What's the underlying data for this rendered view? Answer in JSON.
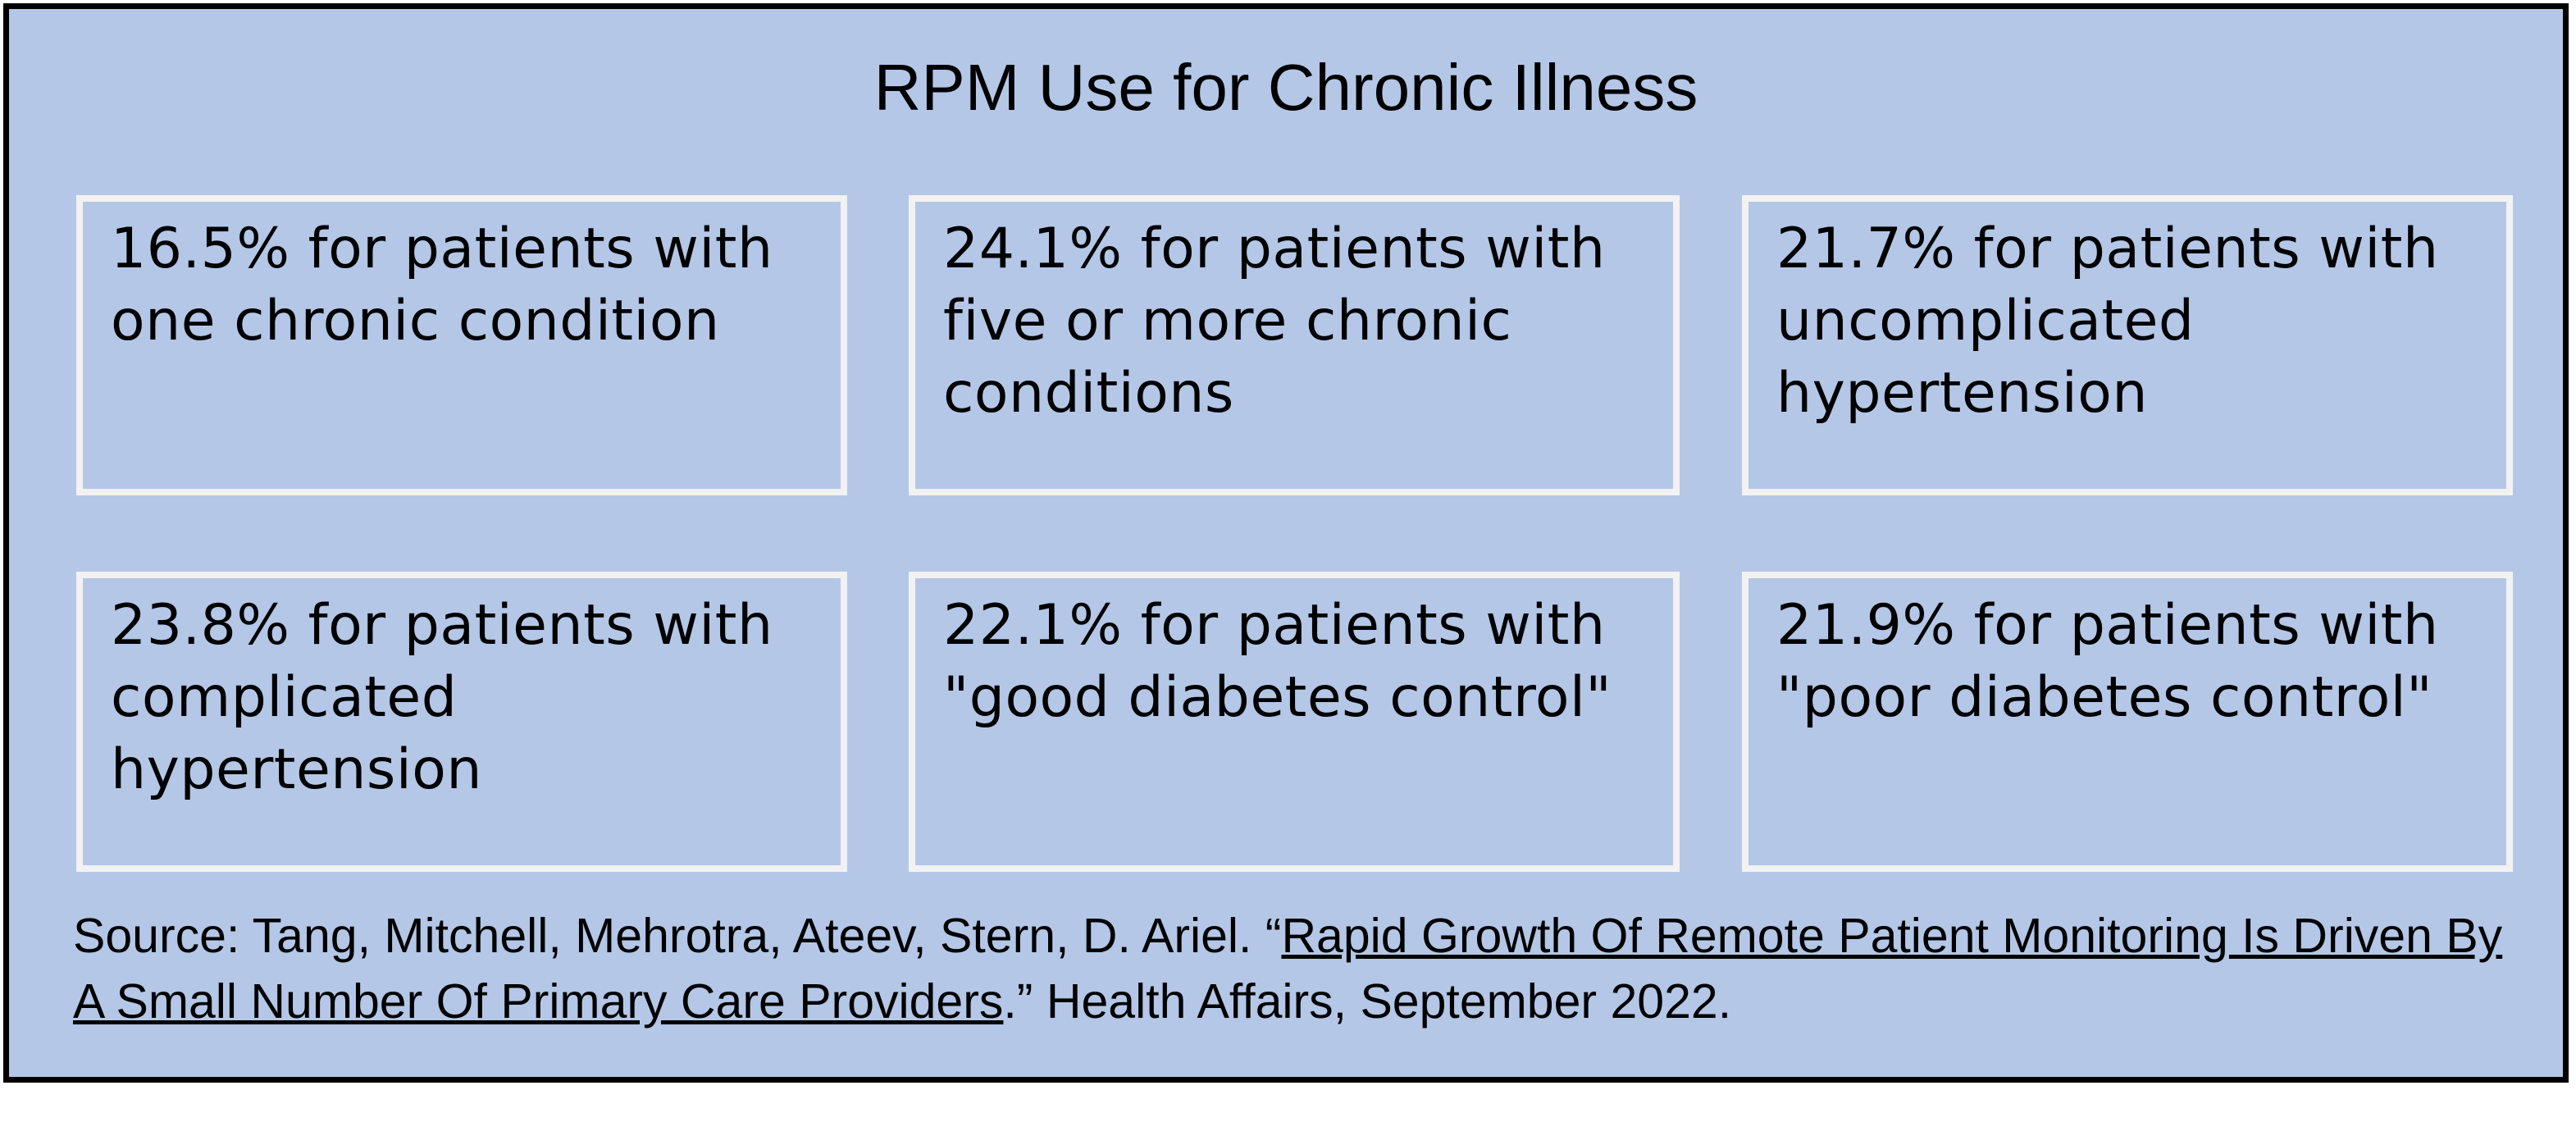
{
  "title": "RPM Use for Chronic Illness",
  "cards": [
    {
      "text": "16.5% for patients with one chronic condition"
    },
    {
      "text": "24.1% for patients with five or more chronic conditions"
    },
    {
      "text": "21.7% for patients with uncomplicated hypertension"
    },
    {
      "text": "23.8% for patients with complicated hypertension"
    },
    {
      "text": "22.1% for patients with \"good diabetes control\""
    },
    {
      "text": "21.9% for patients with \"poor diabetes control\""
    }
  ],
  "source": {
    "prefix": "Source: Tang, Mitchell, Mehrotra, Ateev, Stern, D. Ariel. “",
    "link_text": "Rapid Growth Of Remote Patient Monitoring Is Driven By A Small Number Of Primary Care Providers",
    "suffix": ".” Health Affairs, September 2022."
  }
}
